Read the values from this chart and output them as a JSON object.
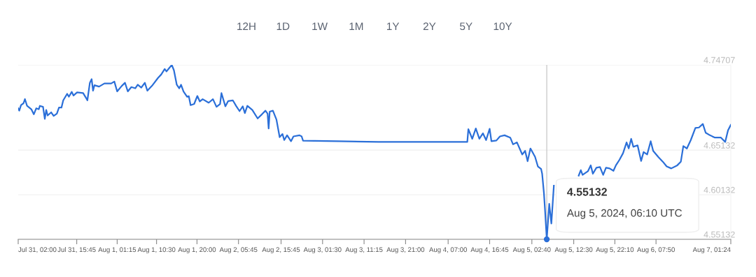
{
  "chart_data": {
    "type": "line",
    "x": [
      "2024-07-31T02:00",
      "2024-07-31T02:15",
      "2024-07-31T02:40",
      "2024-07-31T03:15",
      "2024-07-31T03:35",
      "2024-07-31T04:05",
      "2024-07-31T05:05",
      "2024-07-31T05:40",
      "2024-07-31T06:15",
      "2024-07-31T06:50",
      "2024-07-31T07:05",
      "2024-07-31T07:50",
      "2024-07-31T08:15",
      "2024-07-31T08:35",
      "2024-07-31T08:55",
      "2024-07-31T09:45",
      "2024-07-31T10:20",
      "2024-07-31T11:05",
      "2024-07-31T11:35",
      "2024-07-31T12:10",
      "2024-07-31T12:35",
      "2024-07-31T13:30",
      "2024-07-31T13:55",
      "2024-07-31T14:35",
      "2024-07-31T15:00",
      "2024-07-31T15:50",
      "2024-07-31T17:15",
      "2024-07-31T17:50",
      "2024-07-31T18:15",
      "2024-07-31T18:50",
      "2024-07-31T19:15",
      "2024-07-31T19:35",
      "2024-07-31T19:55",
      "2024-07-31T21:00",
      "2024-07-31T22:15",
      "2024-07-31T23:50",
      "2024-08-01T00:35",
      "2024-08-01T01:15",
      "2024-08-01T02:20",
      "2024-08-01T03:05",
      "2024-08-01T03:45",
      "2024-08-01T04:35",
      "2024-08-01T05:30",
      "2024-08-01T06:05",
      "2024-08-01T06:55",
      "2024-08-01T07:45",
      "2024-08-01T08:20",
      "2024-08-01T09:25",
      "2024-08-01T10:50",
      "2024-08-01T11:35",
      "2024-08-01T12:25",
      "2024-08-01T12:50",
      "2024-08-01T13:25",
      "2024-08-01T14:05",
      "2024-08-01T14:35",
      "2024-08-01T15:15",
      "2024-08-01T15:50",
      "2024-08-01T16:15",
      "2024-08-01T16:50",
      "2024-08-01T17:40",
      "2024-08-01T18:05",
      "2024-08-01T18:30",
      "2024-08-01T19:20",
      "2024-08-01T20:05",
      "2024-08-01T20:40",
      "2024-08-01T21:20",
      "2024-08-01T22:45",
      "2024-08-01T23:45",
      "2024-08-02T00:35",
      "2024-08-02T01:25",
      "2024-08-02T01:45",
      "2024-08-02T02:40",
      "2024-08-02T03:20",
      "2024-08-02T04:25",
      "2024-08-02T05:15",
      "2024-08-02T06:00",
      "2024-08-02T06:45",
      "2024-08-02T07:15",
      "2024-08-02T07:50",
      "2024-08-02T09:00",
      "2024-08-02T10:15",
      "2024-08-02T11:15",
      "2024-08-02T12:05",
      "2024-08-02T12:35",
      "2024-08-02T12:50",
      "2024-08-02T13:05",
      "2024-08-02T13:50",
      "2024-08-02T14:40",
      "2024-08-02T15:25",
      "2024-08-02T16:05",
      "2024-08-02T16:30",
      "2024-08-02T17:10",
      "2024-08-02T18:05",
      "2024-08-02T18:40",
      "2024-08-02T20:05",
      "2024-08-02T20:35",
      "2024-08-02T20:55",
      "2024-08-03T05:05",
      "2024-08-03T14:40",
      "2024-08-04T11:30",
      "2024-08-04T11:45",
      "2024-08-04T12:40",
      "2024-08-04T13:30",
      "2024-08-04T14:20",
      "2024-08-04T15:10",
      "2024-08-04T15:55",
      "2024-08-04T16:45",
      "2024-08-04T17:10",
      "2024-08-04T18:20",
      "2024-08-04T19:10",
      "2024-08-04T20:15",
      "2024-08-04T21:35",
      "2024-08-04T22:15",
      "2024-08-04T23:10",
      "2024-08-05T00:25",
      "2024-08-05T01:05",
      "2024-08-05T01:40",
      "2024-08-05T02:20",
      "2024-08-05T03:25",
      "2024-08-05T04:05",
      "2024-08-05T04:50",
      "2024-08-05T05:05",
      "2024-08-05T05:30",
      "2024-08-05T05:45",
      "2024-08-05T06:10",
      "2024-08-05T06:45",
      "2024-08-05T07:15",
      "2024-08-05T07:50",
      "2024-08-05T10:30",
      "2024-08-05T13:40",
      "2024-08-05T14:10",
      "2024-08-05T14:35",
      "2024-08-05T15:50",
      "2024-08-05T16:30",
      "2024-08-05T17:00",
      "2024-08-05T17:50",
      "2024-08-05T18:40",
      "2024-08-05T19:25",
      "2024-08-05T20:05",
      "2024-08-05T20:55",
      "2024-08-05T21:50",
      "2024-08-05T22:25",
      "2024-08-05T23:15",
      "2024-08-06T00:05",
      "2024-08-06T00:55",
      "2024-08-06T01:25",
      "2024-08-06T02:00",
      "2024-08-06T02:30",
      "2024-08-06T03:30",
      "2024-08-06T04:20",
      "2024-08-06T04:55",
      "2024-08-06T05:45",
      "2024-08-06T06:35",
      "2024-08-06T07:10",
      "2024-08-06T08:20",
      "2024-08-06T09:25",
      "2024-08-06T10:20",
      "2024-08-06T11:25",
      "2024-08-06T12:50",
      "2024-08-06T13:40",
      "2024-08-06T14:15",
      "2024-08-06T15:05",
      "2024-08-06T16:00",
      "2024-08-06T17:05",
      "2024-08-06T17:55",
      "2024-08-06T18:50",
      "2024-08-06T19:30",
      "2024-08-06T20:30",
      "2024-08-06T21:40",
      "2024-08-06T23:05",
      "2024-08-07T00:05",
      "2024-08-07T00:45",
      "2024-08-07T01:24"
    ],
    "series": [
      {
        "color": "#2b6fd8",
        "values": [
          4.6984,
          4.6957,
          4.7019,
          4.704,
          4.7087,
          4.7011,
          4.6973,
          4.6916,
          4.6984,
          4.6973,
          4.7011,
          4.7,
          4.6865,
          4.6965,
          4.6903,
          4.6938,
          4.6898,
          4.6924,
          4.6992,
          4.6992,
          4.7073,
          4.7146,
          4.7114,
          4.7168,
          4.7127,
          4.7162,
          4.7154,
          4.7108,
          4.7073,
          4.727,
          4.7311,
          4.7181,
          4.7243,
          4.7227,
          4.7262,
          4.7262,
          4.7284,
          4.7173,
          4.7235,
          4.727,
          4.7173,
          4.7222,
          4.7208,
          4.7248,
          4.7216,
          4.727,
          4.7181,
          4.7235,
          4.7324,
          4.7362,
          4.7424,
          4.7397,
          4.7432,
          4.747,
          4.741,
          4.7248,
          4.7208,
          4.7248,
          4.7173,
          4.7114,
          4.7119,
          4.7019,
          4.7032,
          4.7122,
          4.706,
          4.7086,
          4.7046,
          4.7086,
          4.7,
          4.7032,
          4.7154,
          4.7006,
          4.7065,
          4.7073,
          4.7006,
          4.6952,
          4.7006,
          4.693,
          4.7011,
          4.6965,
          4.687,
          4.6916,
          4.6957,
          4.6924,
          4.6757,
          4.6946,
          4.6957,
          4.6857,
          4.666,
          4.6695,
          4.6627,
          4.6681,
          4.6614,
          4.6668,
          4.6681,
          4.6668,
          4.662,
          4.6614,
          4.6606,
          4.6606,
          4.6749,
          4.6641,
          4.6757,
          4.6641,
          4.6703,
          4.6627,
          4.6754,
          4.6614,
          4.6622,
          4.6668,
          4.6681,
          4.6655,
          4.6579,
          4.6601,
          4.6465,
          4.6506,
          4.639,
          4.6533,
          4.6439,
          4.6331,
          4.6303,
          4.6249,
          4.6033,
          4.585,
          4.55132,
          4.5912,
          4.5691,
          4.6115,
          null,
          4.6228,
          4.629,
          4.6236,
          4.6277,
          4.6344,
          4.6249,
          4.6317,
          4.6325,
          4.6236,
          4.6317,
          4.6309,
          4.6282,
          4.6344,
          4.6406,
          4.6479,
          4.6601,
          4.6533,
          4.6641,
          4.6552,
          4.6568,
          4.6393,
          4.6493,
          4.6465,
          4.6614,
          4.6506,
          4.6439,
          4.6385,
          4.6331,
          4.6309,
          4.6344,
          4.6385,
          4.656,
          4.6533,
          4.6627,
          4.6763,
          4.6768,
          4.6808,
          4.6709,
          4.6681,
          4.6655,
          4.6655,
          4.6606,
          4.6736,
          4.6797
        ]
      }
    ],
    "xlim": [
      "2024-07-31T02:00",
      "2024-08-07T01:24"
    ],
    "xticks": [
      {
        "value": "2024-07-31T02:00",
        "label": "Jul 31, 02:00"
      },
      {
        "value": "2024-07-31T15:45",
        "label": "Jul 31, 15:45"
      },
      {
        "value": "2024-08-01T01:15",
        "label": "Aug 1, 01:15"
      },
      {
        "value": "2024-08-01T10:30",
        "label": "Aug 1, 10:30"
      },
      {
        "value": "2024-08-01T20:00",
        "label": "Aug 1, 20:00"
      },
      {
        "value": "2024-08-02T05:45",
        "label": "Aug 2, 05:45"
      },
      {
        "value": "2024-08-02T15:45",
        "label": "Aug 2, 15:45"
      },
      {
        "value": "2024-08-03T01:30",
        "label": "Aug 3, 01:30"
      },
      {
        "value": "2024-08-03T11:15",
        "label": "Aug 3, 11:15"
      },
      {
        "value": "2024-08-03T21:00",
        "label": "Aug 3, 21:00"
      },
      {
        "value": "2024-08-04T07:00",
        "label": "Aug 4, 07:00"
      },
      {
        "value": "2024-08-04T16:45",
        "label": "Aug 4, 16:45"
      },
      {
        "value": "2024-08-05T02:40",
        "label": "Aug 5, 02:40"
      },
      {
        "value": "2024-08-05T12:30",
        "label": "Aug 5, 12:30"
      },
      {
        "value": "2024-08-05T22:10",
        "label": "Aug 5, 22:10"
      },
      {
        "value": "2024-08-06T07:50",
        "label": "Aug 6, 07:50"
      },
      {
        "value": "2024-08-07T01:24",
        "label": "Aug 7, 01:24"
      }
    ],
    "ylim": [
      4.55132,
      4.74707
    ],
    "yticks": [
      4.55132,
      4.60132,
      4.65132,
      4.74707
    ],
    "grid": "y",
    "ref_lines": [
      {
        "axis": "x",
        "value": "2024-08-05T06:10",
        "color": "#cccccc"
      }
    ],
    "annotations": [
      {
        "text": "4.55132\nAug 5, 2024, 06:10 UTC",
        "x": "2024-08-05T06:10",
        "y": 4.55132
      },
      "12H",
      "1D",
      "1W",
      "1M",
      "1Y",
      "2Y",
      "5Y",
      "10Y"
    ]
  }
}
